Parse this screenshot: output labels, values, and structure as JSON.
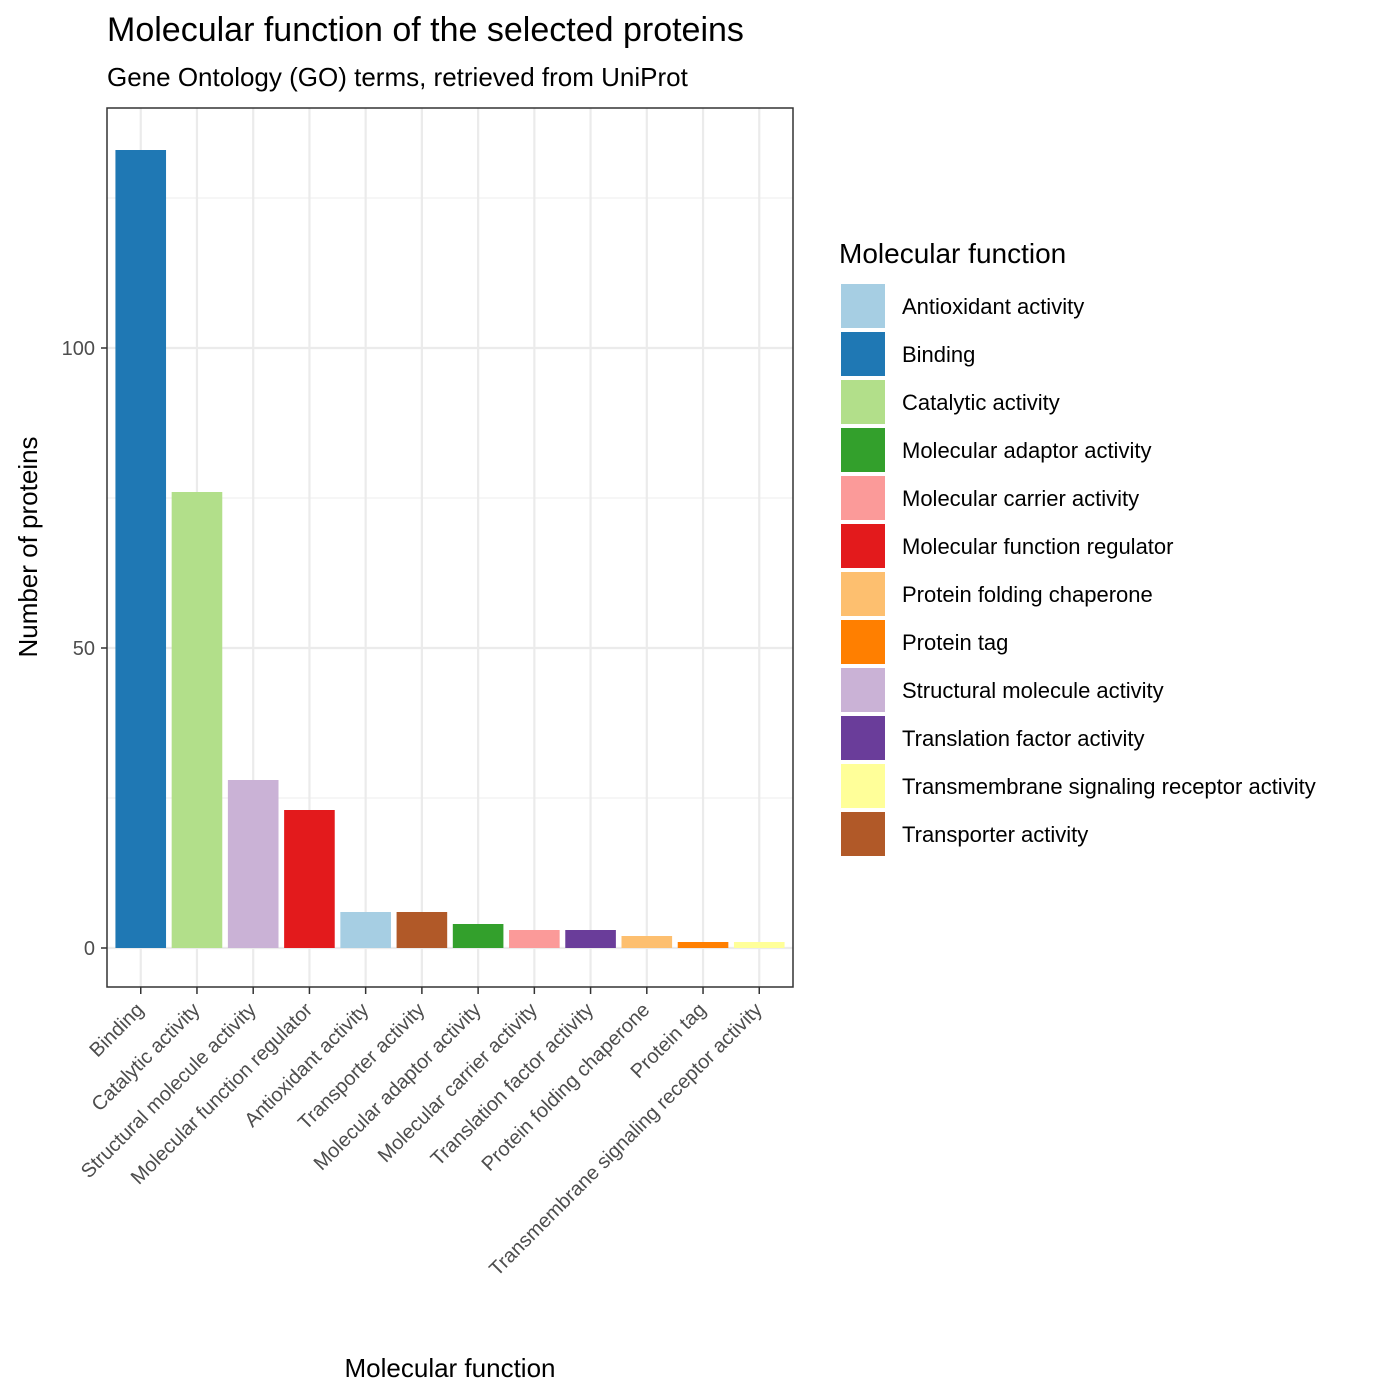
{
  "chart_data": {
    "type": "bar",
    "title": "Molecular function of the selected proteins",
    "subtitle": "Gene Ontology (GO) terms, retrieved from UniProt",
    "xlabel": "Molecular function",
    "ylabel": "Number of proteins",
    "ylim": [
      -6.5,
      140
    ],
    "yticks": [
      0,
      50,
      100
    ],
    "grid": true,
    "legend_position": "right",
    "categories": [
      "Binding",
      "Catalytic activity",
      "Structural molecule activity",
      "Molecular function regulator",
      "Antioxidant activity",
      "Transporter activity",
      "Molecular adaptor activity",
      "Molecular carrier activity",
      "Translation factor activity",
      "Protein folding chaperone",
      "Protein tag",
      "Transmembrane signaling receptor activity"
    ],
    "values": [
      133,
      76,
      28,
      23,
      6,
      6,
      4,
      3,
      3,
      2,
      1,
      1
    ],
    "colors": [
      "#1f78b4",
      "#b2df8a",
      "#cab2d6",
      "#e31a1c",
      "#a6cee3",
      "#b15928",
      "#33a02c",
      "#fb9a99",
      "#6a3d9a",
      "#fdbf6f",
      "#ff7f00",
      "#ffff99"
    ],
    "legend": {
      "title": "Molecular function",
      "items": [
        {
          "label": "Antioxidant activity",
          "color": "#a6cee3"
        },
        {
          "label": "Binding",
          "color": "#1f78b4"
        },
        {
          "label": "Catalytic activity",
          "color": "#b2df8a"
        },
        {
          "label": "Molecular adaptor activity",
          "color": "#33a02c"
        },
        {
          "label": "Molecular carrier activity",
          "color": "#fb9a99"
        },
        {
          "label": "Molecular function regulator",
          "color": "#e31a1c"
        },
        {
          "label": "Protein folding chaperone",
          "color": "#fdbf6f"
        },
        {
          "label": "Protein tag",
          "color": "#ff7f00"
        },
        {
          "label": "Structural molecule activity",
          "color": "#cab2d6"
        },
        {
          "label": "Translation factor activity",
          "color": "#6a3d9a"
        },
        {
          "label": "Transmembrane signaling receptor activity",
          "color": "#ffff99"
        },
        {
          "label": "Transporter activity",
          "color": "#b15928"
        }
      ]
    }
  }
}
